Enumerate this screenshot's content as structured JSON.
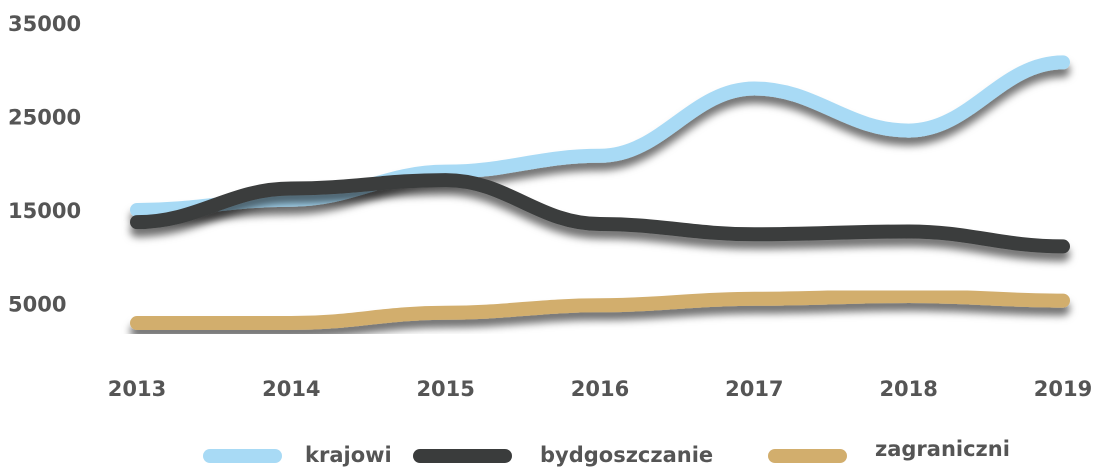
{
  "chart_data": {
    "type": "line",
    "categories": [
      "2013",
      "2014",
      "2015",
      "2016",
      "2017",
      "2018",
      "2019"
    ],
    "series": [
      {
        "name": "krajowi",
        "color": "#a8daf5",
        "values": [
          15200,
          16300,
          19300,
          21000,
          28200,
          23700,
          31000
        ]
      },
      {
        "name": "bydgoszczanie",
        "color": "#3a3c3c",
        "values": [
          13900,
          17500,
          18400,
          13700,
          12600,
          12900,
          11300
        ]
      },
      {
        "name": "zagraniczni",
        "color": "#d2ae6d",
        "values": [
          3100,
          3100,
          4200,
          5000,
          5700,
          6000,
          5500
        ]
      }
    ],
    "ylim": [
      0,
      35000
    ],
    "yticks": [
      5000,
      15000,
      25000,
      35000
    ]
  }
}
